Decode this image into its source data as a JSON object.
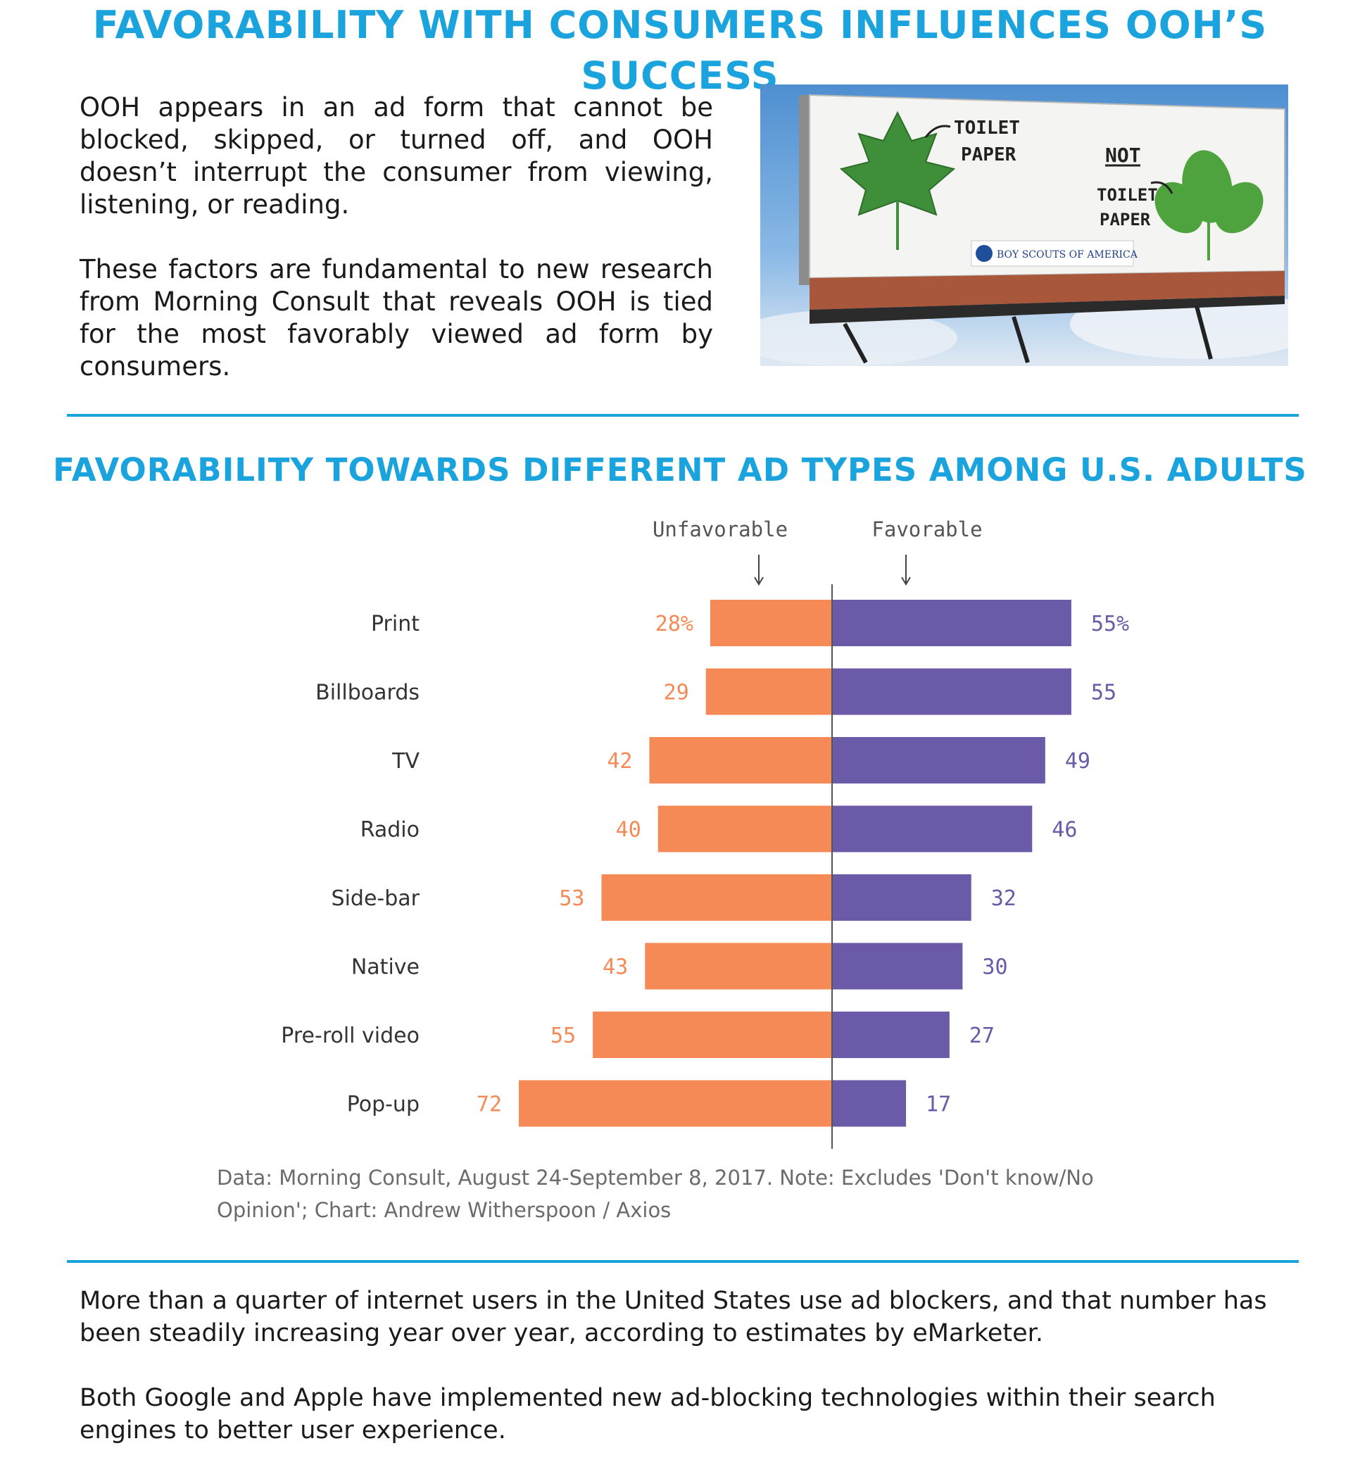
{
  "header": {
    "title": "FAVORABILITY WITH CONSUMERS INFLUENCES OOH’S SUCCESS"
  },
  "intro": {
    "paragraph_1": "OOH appears in an ad form that cannot be blocked, skipped, or turned off, and OOH doesn’t interrupt the consumer from viewing, listening, or reading.",
    "paragraph_2": "These factors are fundamental to new research from Morning Consult that reveals OOH is tied for the most favorably viewed ad form by consumers."
  },
  "billboard": {
    "label_left_line1": "TOILET",
    "label_left_line2": "PAPER",
    "label_right_not": "NOT",
    "label_right_line1": "TOILET",
    "label_right_line2": "PAPER",
    "sponsor": "BOY SCOUTS OF AMERICA"
  },
  "chart_data": {
    "type": "bar",
    "orientation": "diverging-horizontal",
    "title": "FAVORABILITY TOWARDS DIFFERENT AD TYPES AMONG U.S. ADULTS",
    "categories": [
      "Print",
      "Billboards",
      "TV",
      "Radio",
      "Side-bar",
      "Native",
      "Pre-roll video",
      "Pop-up"
    ],
    "series": [
      {
        "name": "Unfavorable",
        "values": [
          28,
          29,
          42,
          40,
          53,
          43,
          55,
          72
        ],
        "color": "#f58a57"
      },
      {
        "name": "Favorable",
        "values": [
          55,
          55,
          49,
          46,
          32,
          30,
          27,
          17
        ],
        "color": "#6a5aa8"
      }
    ],
    "first_label_suffix": "%",
    "source": "Data: Morning Consult, August 24-September 8, 2017. Note: Excludes 'Don't know/No Opinion'; Chart: Andrew Witherspoon / Axios"
  },
  "outro": {
    "paragraph_1": "More than a quarter of internet users in the United States use ad blockers, and that number has been steadily increasing year over year, according to estimates by eMarketer.",
    "paragraph_2": "Both Google and Apple have implemented new ad-blocking technologies within their search engines to better user experience."
  },
  "colors": {
    "accent": "#1aa3dc",
    "unfavorable": "#f58a57",
    "favorable": "#6a5aa8"
  }
}
